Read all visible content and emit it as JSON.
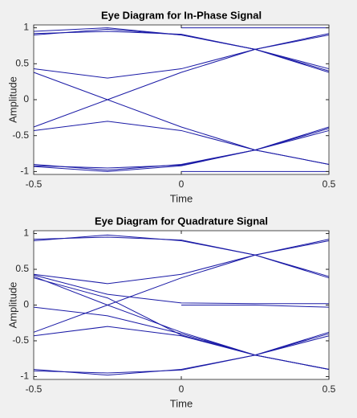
{
  "chart_data": [
    {
      "type": "line",
      "title": "Eye Diagram for In-Phase Signal",
      "x_label": "Time",
      "y_label": "Amplitude",
      "x": [
        -0.5,
        -0.25,
        0,
        0.25,
        0.5
      ],
      "color": "#1a1aa6",
      "xlim": [
        -0.5,
        0.5
      ],
      "ylim": [
        -1.04,
        1.04
      ],
      "xticks": [
        -0.5,
        0,
        0.5
      ],
      "yticks": [
        -1,
        -0.5,
        0,
        0.5,
        1
      ],
      "series": [
        {
          "values": [
            0.9,
            0.98,
            0.9,
            0.7,
            0.4
          ]
        },
        {
          "values": [
            0.92,
            0.95,
            0.91,
            0.7,
            0.38
          ]
        },
        {
          "values": [
            0.95,
            1,
            0.9,
            0.7,
            0.43
          ]
        },
        {
          "values": [
            0.43,
            0.3,
            0.43,
            0.7,
            0.9
          ]
        },
        {
          "values": [
            0.38,
            0,
            -0.38,
            -0.7,
            -0.9
          ]
        },
        {
          "values": [
            -0.38,
            0,
            0.38,
            0.7,
            0.92
          ]
        },
        {
          "values": [
            -0.43,
            -0.3,
            -0.43,
            -0.7,
            -0.9
          ]
        },
        {
          "values": [
            -0.9,
            -0.98,
            -0.9,
            -0.7,
            -0.4
          ]
        },
        {
          "values": [
            -0.92,
            -0.95,
            -0.91,
            -0.7,
            -0.38
          ]
        },
        {
          "values": [
            -0.93,
            -1,
            -0.92,
            -0.7,
            -0.43
          ]
        },
        {
          "values": [
            null,
            null,
            1,
            1,
            1
          ]
        },
        {
          "values": [
            null,
            null,
            -1,
            -1,
            -1
          ]
        }
      ]
    },
    {
      "type": "line",
      "title": "Eye Diagram for Quadrature Signal",
      "x_label": "Time",
      "y_label": "Amplitude",
      "x": [
        -0.5,
        -0.25,
        0,
        0.25,
        0.5
      ],
      "color": "#1a1aa6",
      "xlim": [
        -0.5,
        0.5
      ],
      "ylim": [
        -1.04,
        1.04
      ],
      "xticks": [
        -0.5,
        0,
        0.5
      ],
      "yticks": [
        -1,
        -0.5,
        0,
        0.5,
        1
      ],
      "series": [
        {
          "values": [
            0.9,
            0.98,
            0.9,
            0.7,
            0.4
          ]
        },
        {
          "values": [
            0.92,
            0.95,
            0.91,
            0.7,
            0.38
          ]
        },
        {
          "values": [
            0.43,
            0.3,
            0.43,
            0.7,
            0.9
          ]
        },
        {
          "values": [
            0.4,
            0,
            -0.38,
            -0.7,
            -0.9
          ]
        },
        {
          "values": [
            -0.38,
            0,
            0.38,
            0.7,
            0.92
          ]
        },
        {
          "values": [
            -0.43,
            -0.3,
            -0.43,
            -0.7,
            -0.9
          ]
        },
        {
          "values": [
            -0.9,
            -0.98,
            -0.9,
            -0.7,
            -0.4
          ]
        },
        {
          "values": [
            -0.92,
            -0.95,
            -0.91,
            -0.7,
            -0.38
          ]
        },
        {
          "values": [
            -0.03,
            -0.15,
            -0.4,
            -0.7,
            -0.9
          ]
        },
        {
          "values": [
            0.42,
            0.15,
            0.03,
            0.02,
            0.02
          ]
        },
        {
          "values": [
            0.38,
            0.1,
            -0.42,
            -0.7,
            -0.43
          ]
        },
        {
          "values": [
            null,
            null,
            0,
            0,
            -0.03
          ]
        }
      ]
    }
  ]
}
